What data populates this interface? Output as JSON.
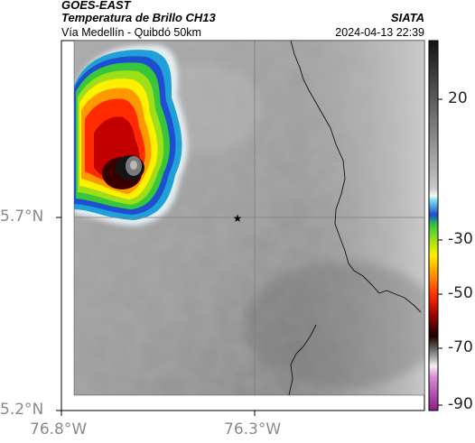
{
  "header": {
    "satellite": "GOES-EAST",
    "product": "Temperatura de Brillo CH13",
    "route": "Vía Medellín - Quibdó 50km",
    "agency": "SIATA",
    "timestamp": "2024-04-13 22:39"
  },
  "axes": {
    "lat_ticks": [
      "5.7°N",
      "5.2°N"
    ],
    "lon_ticks": [
      "76.8°W",
      "76.3°W"
    ]
  },
  "colorbar": {
    "ticks": [
      "20",
      "-30",
      "-50",
      "-70",
      "-90"
    ]
  },
  "colors": {
    "cloud_top_cold": "#cc0000",
    "cloud_top_core": "#141414",
    "storm_edge": "#1fa0d8"
  },
  "marker": {
    "icon": "star-icon"
  }
}
